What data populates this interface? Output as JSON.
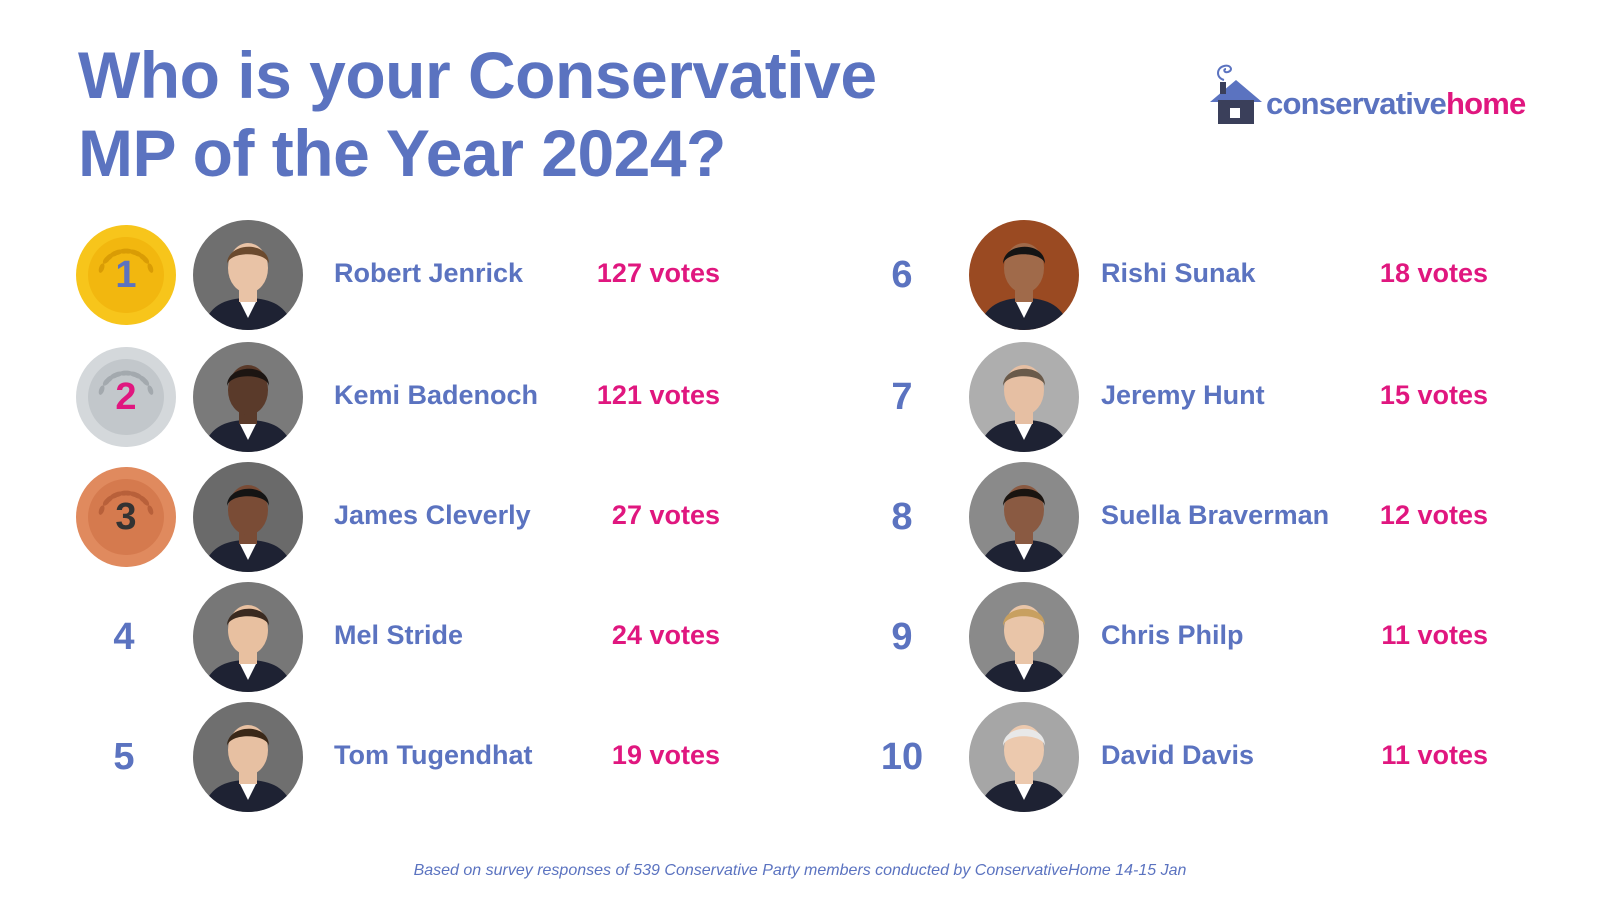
{
  "title_line1": "Who is your Conservative",
  "title_line2": "MP of the Year 2024?",
  "logo": {
    "part1": "conservative",
    "part2": "home"
  },
  "colors": {
    "accent": "#5b73c0",
    "votes": "#e0177f",
    "gold": "#f7c51b",
    "silver": "#c5cacd",
    "bronze": "#e08a5e"
  },
  "ranking": [
    {
      "rank": "1",
      "name": "Robert Jenrick",
      "votes": "127 votes",
      "medal": "gold"
    },
    {
      "rank": "2",
      "name": "Kemi Badenoch",
      "votes": "121 votes",
      "medal": "silver"
    },
    {
      "rank": "3",
      "name": "James Cleverly",
      "votes": "27 votes",
      "medal": "bronze"
    },
    {
      "rank": "4",
      "name": "Mel Stride",
      "votes": "24 votes"
    },
    {
      "rank": "5",
      "name": "Tom Tugendhat",
      "votes": "19 votes"
    },
    {
      "rank": "6",
      "name": "Rishi Sunak",
      "votes": "18 votes"
    },
    {
      "rank": "7",
      "name": "Jeremy Hunt",
      "votes": "15 votes"
    },
    {
      "rank": "8",
      "name": "Suella Braverman",
      "votes": "12 votes"
    },
    {
      "rank": "9",
      "name": "Chris Philp",
      "votes": "11 votes"
    },
    {
      "rank": "10",
      "name": "David Davis",
      "votes": "11 votes"
    }
  ],
  "footnote": "Based on survey responses of 539 Conservative Party members conducted by ConservativeHome 14-15 Jan"
}
